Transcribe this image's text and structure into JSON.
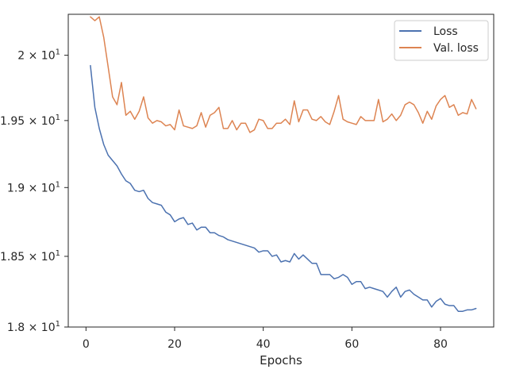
{
  "chart_data": {
    "type": "line",
    "title": "",
    "xlabel": "Epochs",
    "ylabel": "",
    "xlim": [
      -4,
      92
    ],
    "ylim": [
      18.0,
      20.32
    ],
    "y_scale": "log",
    "grid": false,
    "legend_position": "top-right",
    "x_ticks": [
      0,
      20,
      40,
      60,
      80
    ],
    "x_tick_labels": [
      "0",
      "20",
      "40",
      "60",
      "80"
    ],
    "y_ticks": [
      {
        "value": 18.0,
        "mantissa": "1.8",
        "base": "10",
        "exp": "1"
      },
      {
        "value": 18.5,
        "mantissa": "1.85",
        "base": "10",
        "exp": "1"
      },
      {
        "value": 19.0,
        "mantissa": "1.9",
        "base": "10",
        "exp": "1"
      },
      {
        "value": 19.5,
        "mantissa": "1.95",
        "base": "10",
        "exp": "1"
      },
      {
        "value": 20.0,
        "mantissa": "2",
        "base": "10",
        "exp": "1"
      }
    ],
    "series": [
      {
        "name": "Loss",
        "color": "#4c72b0",
        "x": [
          1,
          2,
          3,
          4,
          5,
          6,
          7,
          8,
          9,
          10,
          11,
          12,
          13,
          14,
          15,
          16,
          17,
          18,
          19,
          20,
          21,
          22,
          23,
          24,
          25,
          26,
          27,
          28,
          29,
          30,
          31,
          32,
          33,
          34,
          35,
          36,
          37,
          38,
          39,
          40,
          41,
          42,
          43,
          44,
          45,
          46,
          47,
          48,
          49,
          50,
          51,
          52,
          53,
          54,
          55,
          56,
          57,
          58,
          59,
          60,
          61,
          62,
          63,
          64,
          65,
          66,
          67,
          68,
          69,
          70,
          71,
          72,
          73,
          74,
          75,
          76,
          77,
          78,
          79,
          80,
          81,
          82,
          83,
          84,
          85,
          86,
          87,
          88
        ],
        "y": [
          19.92,
          19.6,
          19.44,
          19.32,
          19.24,
          19.2,
          19.16,
          19.1,
          19.05,
          19.03,
          18.98,
          18.97,
          18.98,
          18.92,
          18.89,
          18.88,
          18.87,
          18.82,
          18.8,
          18.75,
          18.77,
          18.78,
          18.73,
          18.74,
          18.69,
          18.71,
          18.71,
          18.67,
          18.67,
          18.65,
          18.64,
          18.62,
          18.61,
          18.6,
          18.59,
          18.58,
          18.57,
          18.56,
          18.53,
          18.54,
          18.54,
          18.5,
          18.51,
          18.46,
          18.47,
          18.46,
          18.52,
          18.48,
          18.51,
          18.48,
          18.45,
          18.45,
          18.37,
          18.37,
          18.37,
          18.34,
          18.35,
          18.37,
          18.35,
          18.3,
          18.32,
          18.32,
          18.27,
          18.28,
          18.27,
          18.26,
          18.25,
          18.21,
          18.25,
          18.28,
          18.21,
          18.25,
          18.26,
          18.23,
          18.21,
          18.19,
          18.19,
          18.14,
          18.18,
          18.2,
          18.16,
          18.15,
          18.15,
          18.11,
          18.11,
          18.12,
          18.12,
          18.13
        ]
      },
      {
        "name": "Val. loss",
        "color": "#dd8452",
        "x": [
          1,
          2,
          3,
          4,
          5,
          6,
          7,
          8,
          9,
          10,
          11,
          12,
          13,
          14,
          15,
          16,
          17,
          18,
          19,
          20,
          21,
          22,
          23,
          24,
          25,
          26,
          27,
          28,
          29,
          30,
          31,
          32,
          33,
          34,
          35,
          36,
          37,
          38,
          39,
          40,
          41,
          42,
          43,
          44,
          45,
          46,
          47,
          48,
          49,
          50,
          51,
          52,
          53,
          54,
          55,
          56,
          57,
          58,
          59,
          60,
          61,
          62,
          63,
          64,
          65,
          66,
          67,
          68,
          69,
          70,
          71,
          72,
          73,
          74,
          75,
          76,
          77,
          78,
          79,
          80,
          81,
          82,
          83,
          84,
          85,
          86,
          87,
          88
        ],
        "y": [
          20.3,
          20.27,
          20.3,
          20.14,
          19.91,
          19.68,
          19.62,
          19.79,
          19.54,
          19.57,
          19.51,
          19.57,
          19.68,
          19.52,
          19.48,
          19.5,
          19.49,
          19.46,
          19.47,
          19.43,
          19.58,
          19.46,
          19.45,
          19.44,
          19.46,
          19.56,
          19.45,
          19.54,
          19.56,
          19.6,
          19.44,
          19.44,
          19.5,
          19.43,
          19.48,
          19.48,
          19.41,
          19.43,
          19.51,
          19.5,
          19.44,
          19.44,
          19.48,
          19.48,
          19.51,
          19.47,
          19.65,
          19.49,
          19.58,
          19.58,
          19.51,
          19.5,
          19.53,
          19.49,
          19.47,
          19.57,
          19.69,
          19.51,
          19.49,
          19.48,
          19.47,
          19.53,
          19.5,
          19.5,
          19.5,
          19.66,
          19.49,
          19.51,
          19.55,
          19.5,
          19.54,
          19.62,
          19.64,
          19.62,
          19.56,
          19.48,
          19.57,
          19.51,
          19.61,
          19.66,
          19.69,
          19.6,
          19.62,
          19.54,
          19.56,
          19.55,
          19.66,
          19.59
        ]
      }
    ]
  }
}
